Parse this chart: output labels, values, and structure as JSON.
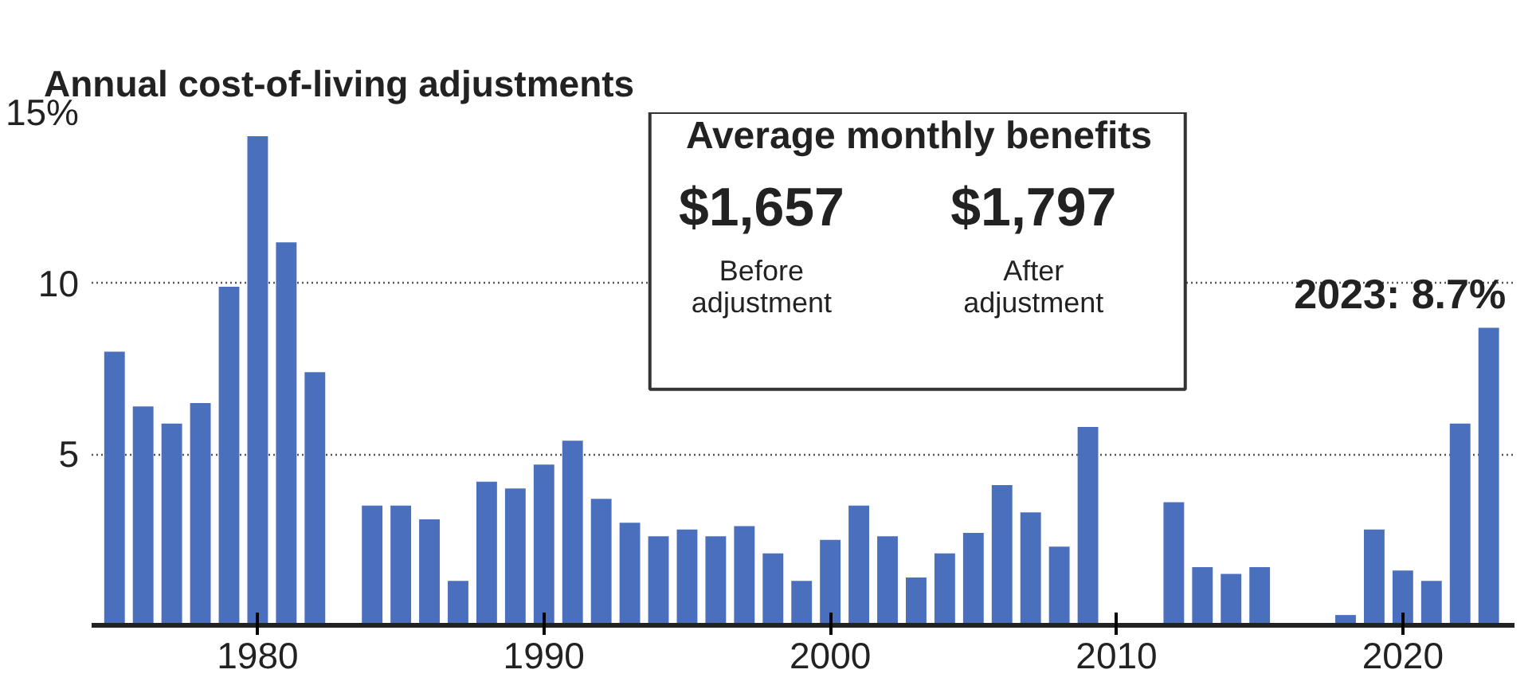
{
  "chart_data": {
    "type": "bar",
    "title": "Annual cost-of-living adjustments",
    "x": [
      1975,
      1976,
      1977,
      1978,
      1979,
      1980,
      1981,
      1982,
      1983,
      1984,
      1985,
      1986,
      1987,
      1988,
      1989,
      1990,
      1991,
      1992,
      1993,
      1994,
      1995,
      1996,
      1997,
      1998,
      1999,
      2000,
      2001,
      2002,
      2003,
      2004,
      2005,
      2006,
      2007,
      2008,
      2009,
      2010,
      2011,
      2012,
      2013,
      2014,
      2015,
      2016,
      2017,
      2018,
      2019,
      2020,
      2021,
      2022,
      2023
    ],
    "series": [
      {
        "color": "#4a6fbd",
        "values": [
          8.0,
          6.4,
          5.9,
          6.5,
          9.9,
          14.3,
          11.2,
          7.4,
          null,
          3.5,
          3.5,
          3.1,
          1.3,
          4.2,
          4.0,
          4.7,
          5.4,
          3.7,
          3.0,
          2.6,
          2.8,
          2.6,
          2.9,
          2.1,
          1.3,
          2.5,
          3.5,
          2.6,
          1.4,
          2.1,
          2.7,
          4.1,
          3.3,
          2.3,
          5.8,
          null,
          null,
          3.6,
          1.7,
          1.5,
          1.7,
          null,
          null,
          0.3,
          2.8,
          1.6,
          1.3,
          5.9,
          8.7
        ]
      }
    ],
    "xlim": [
      1974.2,
      2023.9
    ],
    "xticks": [
      1980,
      1990,
      2000,
      2010,
      2020
    ],
    "ylim": [
      0,
      15
    ],
    "yticks": [
      5,
      10,
      {
        "value": 15,
        "label": "15%"
      }
    ],
    "grid": "y",
    "annotations": [
      "Average monthly benefits",
      "$1,657",
      "Before adjustment",
      "$1,797",
      "After adjustment",
      "2023: 8.7%"
    ]
  }
}
